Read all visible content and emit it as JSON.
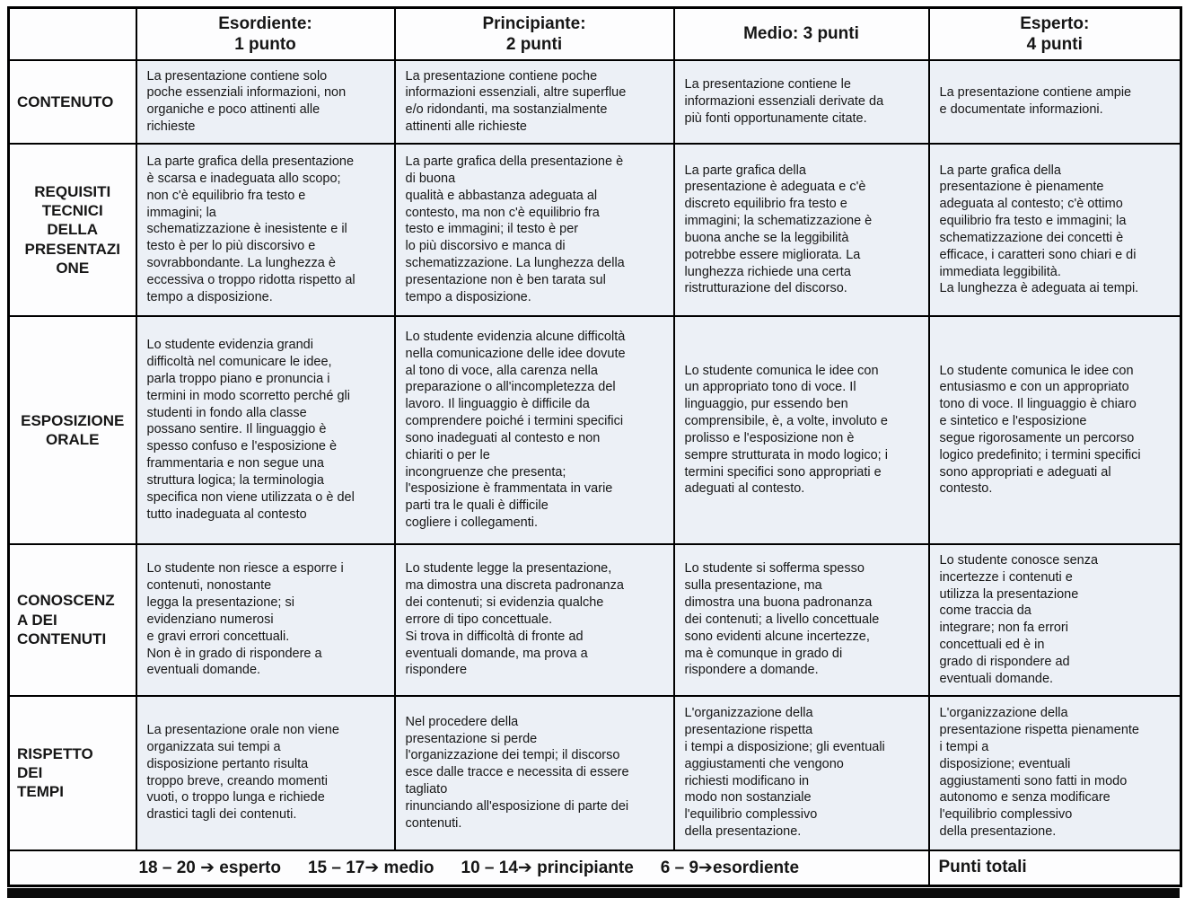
{
  "colors": {
    "cell_bg": "#ecf0f6",
    "header_bg": "#fdfdfe",
    "border": "#000000",
    "text": "#161616"
  },
  "table": {
    "levels": [
      "Esordiente:\n1 punto",
      "Principiante:\n2 punti",
      "Medio: 3 punti",
      "Esperto:\n4 punti"
    ],
    "rows": [
      {
        "label": "CONTENUTO",
        "label_align": "left",
        "cells": [
          "La presentazione contiene solo\npoche essenziali informazioni, non\norganiche e poco attinenti alle\nrichieste",
          "La presentazione contiene poche\ninformazioni essenziali, altre superflue\ne/o ridondanti, ma sostanzialmente\nattinenti alle richieste",
          "La presentazione contiene le\ninformazioni essenziali derivate da\npiù fonti opportunamente citate.",
          "La presentazione contiene ampie\ne documentate informazioni."
        ]
      },
      {
        "label": "REQUISITI\nTECNICI\nDELLA\nPRESENTAZI\nONE",
        "label_align": "center",
        "cells": [
          "La parte grafica della presentazione\nè scarsa e inadeguata allo scopo;\nnon c'è equilibrio fra testo e\nimmagini; la\nschematizzazione è inesistente e il\ntesto è per lo più discorsivo e\nsovrabbondante. La lunghezza è\neccessiva o troppo ridotta rispetto al\ntempo a disposizione.",
          "La parte grafica della presentazione è\ndi buona\nqualità e abbastanza adeguata al\ncontesto, ma non c'è equilibrio fra\ntesto e immagini; il testo è per\nlo più discorsivo e manca di\nschematizzazione. La lunghezza della\npresentazione non è ben tarata sul\ntempo a disposizione.",
          "La parte grafica della\npresentazione è adeguata e c'è\ndiscreto equilibrio fra testo e\nimmagini; la schematizzazione è\nbuona anche se la leggibilità\npotrebbe essere migliorata. La\nlunghezza richiede una certa\nristrutturazione del discorso.",
          "La parte grafica della\npresentazione è pienamente\nadeguata al contesto; c'è ottimo\nequilibrio fra testo e immagini; la\nschematizzazione dei concetti è\nefficace, i caratteri sono chiari e di\nimmediata leggibilità.\nLa lunghezza è adeguata ai tempi."
        ]
      },
      {
        "label": "ESPOSIZIONE\nORALE",
        "label_align": "center",
        "cells": [
          "Lo studente evidenzia grandi\ndifficoltà nel comunicare le idee,\nparla troppo piano e pronuncia i\ntermini in modo scorretto perché gli\nstudenti in fondo alla classe\npossano sentire. Il linguaggio è\nspesso confuso e l'esposizione è\nframmentaria e non segue una\nstruttura logica; la terminologia\nspecifica non viene utilizzata o è del\ntutto inadeguata al contesto",
          "Lo studente evidenzia alcune difficoltà\nnella comunicazione delle idee dovute\nal tono di voce, alla carenza nella\npreparazione o all'incompletezza del\nlavoro. Il linguaggio è difficile da\ncomprendere poiché i termini specifici\nsono inadeguati al contesto e non\nchiariti o per le\nincongruenze che presenta;\nl'esposizione è frammentata in varie\nparti tra le quali è difficile\ncogliere i collegamenti.",
          "Lo studente comunica le idee con\nun appropriato tono di voce. Il\nlinguaggio, pur essendo ben\ncomprensibile, è, a volte, involuto e\nprolisso e l'esposizione non è\nsempre strutturata in modo logico; i\ntermini specifici sono appropriati e\nadeguati al contesto.",
          "Lo studente comunica le idee con\nentusiasmo e con un appropriato\ntono di voce. Il linguaggio è chiaro\ne sintetico e l'esposizione\nsegue rigorosamente un percorso\nlogico predefinito; i termini specifici\nsono appropriati e adeguati al\ncontesto."
        ]
      },
      {
        "label": "CONOSCENZ\nA DEI\nCONTENUTI",
        "label_align": "left",
        "cells": [
          "Lo studente non riesce a esporre i\ncontenuti, nonostante\nlegga la presentazione; si\nevidenziano numerosi\ne gravi errori concettuali.\nNon è in grado di rispondere a\neventuali domande.",
          "Lo studente legge la presentazione,\nma dimostra una discreta padronanza\ndei contenuti; si evidenzia qualche\nerrore di tipo concettuale.\nSi trova in difficoltà di fronte ad\neventuali domande, ma prova a\nrispondere",
          "Lo studente si sofferma spesso\nsulla presentazione, ma\ndimostra una buona padronanza\ndei contenuti; a livello concettuale\nsono evidenti alcune incertezze,\nma è comunque in grado di\nrispondere a domande.",
          "Lo studente conosce senza\nincertezze i contenuti e\nutilizza la presentazione\ncome traccia da\nintegrare; non fa errori\nconcettuali ed è in\ngrado di rispondere ad\neventuali domande."
        ]
      },
      {
        "label": "RISPETTO\nDEI\nTEMPI",
        "label_align": "left",
        "cells": [
          "La presentazione orale non viene\norganizzata sui tempi a\ndisposizione pertanto risulta\ntroppo breve, creando momenti\nvuoti, o troppo lunga e richiede\ndrastici tagli dei contenuti.",
          "Nel procedere della\npresentazione si perde\nl'organizzazione dei tempi; il discorso\nesce dalle tracce e necessita di essere\ntagliato\nrinunciando all'esposizione di parte dei\ncontenuti.",
          "L'organizzazione della\npresentazione rispetta\ni tempi a disposizione; gli eventuali\naggiustamenti che vengono\nrichiesti  modificano in\nmodo non sostanziale\nl'equilibrio complessivo\ndella presentazione.",
          "L'organizzazione della\npresentazione rispetta pienamente\ni tempi a\ndisposizione; eventuali\naggiustamenti sono fatti in modo\nautonomo e senza modificare\nl'equilibrio complessivo\ndella presentazione."
        ]
      }
    ],
    "footer": {
      "scale": [
        "18 – 20 ➔ esperto",
        "15 – 17➔ medio",
        "10 – 14➔ principiante",
        "6 – 9➔esordiente"
      ],
      "total_label": "Punti totali"
    }
  }
}
